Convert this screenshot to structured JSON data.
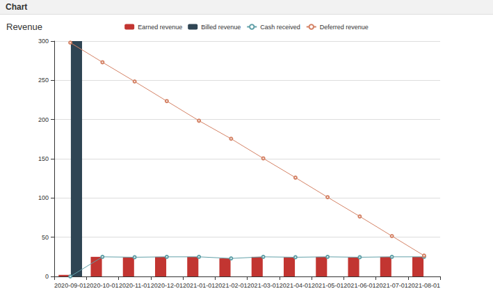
{
  "header": {
    "title": "Chart"
  },
  "chart_data": {
    "type": "bar",
    "title": "Revenue",
    "categories": [
      "2020-09-01",
      "2020-10-01",
      "2020-11-01",
      "2020-12-01",
      "2021-01-01",
      "2021-02-01",
      "2021-03-01",
      "2021-04-01",
      "2021-05-01",
      "2021-06-01",
      "2021-07-01",
      "2021-08-01"
    ],
    "series": [
      {
        "name": "Earned revenue",
        "type": "bar",
        "color": "#c23531",
        "values": [
          2,
          25,
          24.5,
          25,
          25,
          23,
          25,
          24.5,
          25,
          24.5,
          25,
          25
        ]
      },
      {
        "name": "Billed revenue",
        "type": "bar",
        "color": "#2f4554",
        "values": [
          300,
          null,
          null,
          null,
          null,
          null,
          null,
          null,
          null,
          null,
          null,
          null
        ]
      },
      {
        "name": "Cash received",
        "type": "line",
        "marker": "circle",
        "color": "#61a0a8",
        "values": [
          0,
          25,
          24.5,
          25,
          25,
          23,
          25,
          24.5,
          25,
          24.5,
          25,
          25
        ]
      },
      {
        "name": "Deferred revenue",
        "type": "line",
        "marker": "circle",
        "color": "#d48265",
        "values": [
          298,
          273,
          248.5,
          223.5,
          198.5,
          175.5,
          150.5,
          126,
          101,
          76.5,
          51.5,
          26.5
        ]
      }
    ],
    "ylim": [
      0,
      300
    ],
    "yticks": [
      0,
      50,
      100,
      150,
      200,
      250,
      300
    ],
    "grid": true,
    "legend": "top"
  }
}
